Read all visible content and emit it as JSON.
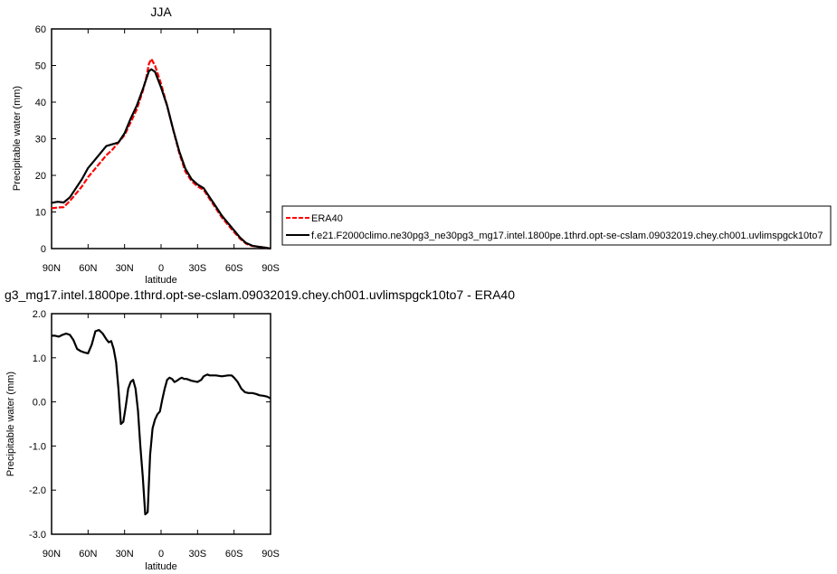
{
  "chart_data": [
    {
      "type": "line",
      "title": "JJA",
      "xlabel": "latitude",
      "ylabel": "Precipitable water (mm)",
      "xlim": [
        90,
        -90
      ],
      "ylim": [
        0,
        60
      ],
      "xticks": [
        90,
        60,
        30,
        0,
        -30,
        -60,
        -90
      ],
      "xtick_labels": [
        "90N",
        "60N",
        "30N",
        "0",
        "30S",
        "60S",
        "90S"
      ],
      "yticks": [
        0,
        10,
        20,
        30,
        40,
        50,
        60
      ],
      "ytick_labels": [
        "0",
        "10",
        "20",
        "30",
        "40",
        "50",
        "60"
      ],
      "legend_position": "right",
      "series": [
        {
          "name": "ERA40",
          "color": "#ff0000",
          "dash": "dashed",
          "x": [
            90,
            85,
            80,
            75,
            70,
            65,
            60,
            55,
            50,
            45,
            40,
            35,
            30,
            25,
            20,
            15,
            12,
            10,
            8,
            5,
            0,
            -5,
            -10,
            -15,
            -20,
            -25,
            -30,
            -35,
            -40,
            -45,
            -50,
            -55,
            -60,
            -65,
            -70,
            -75,
            -80,
            -85,
            -90
          ],
          "y": [
            11,
            11.2,
            11.3,
            13,
            15,
            17,
            19.5,
            21.5,
            23.5,
            25.5,
            27,
            29,
            31,
            34.5,
            38,
            43,
            47,
            50.5,
            51.8,
            50,
            45,
            39,
            32.5,
            26,
            21,
            18.5,
            17,
            16,
            13.5,
            11,
            8.5,
            6.5,
            4.5,
            2.7,
            1.3,
            0.7,
            0.5,
            0.3,
            0
          ]
        },
        {
          "name": "f.e21.F2000climo.ne30pg3_ne30pg3_mg17.intel.1800pe.1thrd.opt-se-cslam.09032019.chey.ch001.uvlimspgck10to7",
          "color": "#000000",
          "dash": "solid",
          "x": [
            90,
            85,
            80,
            75,
            70,
            65,
            60,
            55,
            50,
            45,
            40,
            35,
            30,
            25,
            20,
            15,
            12,
            10,
            8,
            5,
            0,
            -5,
            -10,
            -15,
            -20,
            -25,
            -30,
            -35,
            -40,
            -45,
            -50,
            -55,
            -60,
            -65,
            -70,
            -75,
            -80,
            -85,
            -90
          ],
          "y": [
            12.5,
            12.8,
            12.6,
            14,
            16.5,
            19,
            22,
            24,
            26,
            28,
            28.5,
            29,
            31.5,
            35.5,
            39,
            43.5,
            46.5,
            48.5,
            49,
            48.3,
            44,
            39,
            32.5,
            26.5,
            21.8,
            19,
            17.5,
            16.5,
            14,
            11.5,
            9,
            7,
            5,
            3,
            1.5,
            0.8,
            0.5,
            0.3,
            0
          ]
        }
      ]
    },
    {
      "type": "line",
      "title": "g3_mg17.intel.1800pe.1thrd.opt-se-cslam.09032019.chey.ch001.uvlimspgck10to7 - ERA40",
      "xlabel": "latitude",
      "ylabel": "Precipitable water (mm)",
      "xlim": [
        90,
        -90
      ],
      "ylim": [
        -3,
        2
      ],
      "xticks": [
        90,
        60,
        30,
        0,
        -30,
        -60,
        -90
      ],
      "xtick_labels": [
        "90N",
        "60N",
        "30N",
        "0",
        "30S",
        "60S",
        "90S"
      ],
      "yticks": [
        -3,
        -2,
        -1,
        0,
        1,
        2
      ],
      "ytick_labels": [
        "-3.0",
        "-2.0",
        "-1.0",
        "0.0",
        "1.0",
        "2.0"
      ],
      "series": [
        {
          "color": "#000000",
          "dash": "solid",
          "x": [
            90,
            87,
            84,
            81,
            78,
            75,
            72,
            69,
            66,
            63,
            60,
            57,
            54,
            51,
            48,
            45,
            43,
            41,
            39,
            37,
            35,
            33,
            31,
            29,
            27,
            25,
            23,
            21,
            19,
            17,
            15,
            13,
            11,
            9,
            7,
            5,
            3,
            1,
            -1,
            -3,
            -5,
            -7,
            -9,
            -11,
            -13,
            -15,
            -17,
            -19,
            -21,
            -25,
            -30,
            -33,
            -35,
            -38,
            -40,
            -45,
            -50,
            -55,
            -58,
            -60,
            -63,
            -66,
            -69,
            -72,
            -75,
            -78,
            -81,
            -84,
            -87,
            -90
          ],
          "y": [
            1.5,
            1.5,
            1.48,
            1.52,
            1.55,
            1.52,
            1.4,
            1.2,
            1.15,
            1.12,
            1.1,
            1.3,
            1.6,
            1.63,
            1.55,
            1.42,
            1.35,
            1.38,
            1.2,
            0.9,
            0.3,
            -0.5,
            -0.45,
            -0.1,
            0.3,
            0.45,
            0.5,
            0.3,
            -0.2,
            -1.0,
            -1.7,
            -2.55,
            -2.5,
            -1.2,
            -0.6,
            -0.4,
            -0.28,
            -0.22,
            0.05,
            0.3,
            0.5,
            0.55,
            0.52,
            0.45,
            0.48,
            0.52,
            0.55,
            0.52,
            0.52,
            0.48,
            0.45,
            0.5,
            0.58,
            0.62,
            0.6,
            0.6,
            0.58,
            0.6,
            0.6,
            0.55,
            0.45,
            0.3,
            0.22,
            0.2,
            0.2,
            0.18,
            0.15,
            0.14,
            0.12,
            0.08
          ]
        }
      ]
    }
  ]
}
